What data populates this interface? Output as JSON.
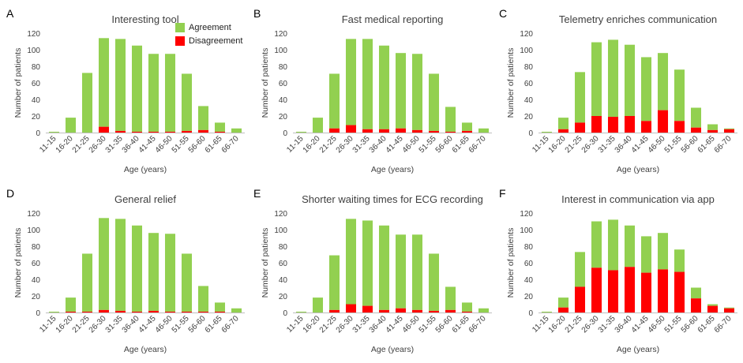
{
  "colors": {
    "agreement": "#92d050",
    "disagreement": "#ff0000",
    "axis": "#595959",
    "text": "#404040"
  },
  "legend": {
    "agreement_label": "Agreement",
    "disagreement_label": "Disagreement"
  },
  "chart_data": [
    {
      "panel": "A",
      "title": "Interesting tool",
      "type": "bar",
      "stacked": true,
      "xlabel": "Age (years)",
      "ylabel": "Number of patients",
      "ylim": [
        0,
        120
      ],
      "yticks": [
        0,
        20,
        40,
        60,
        80,
        100,
        120
      ],
      "categories": [
        "11-15",
        "16-20",
        "21-25",
        "26-30",
        "31-35",
        "36-40",
        "41-45",
        "46-50",
        "51-55",
        "56-60",
        "61-65",
        "66-70"
      ],
      "series": [
        {
          "name": "Disagreement",
          "values": [
            0,
            0,
            0,
            7,
            2,
            1,
            1,
            1,
            2,
            3,
            1,
            0
          ]
        },
        {
          "name": "Agreement",
          "values": [
            1,
            18,
            72,
            107,
            111,
            104,
            94,
            94,
            69,
            29,
            11,
            5
          ]
        }
      ]
    },
    {
      "panel": "B",
      "title": "Fast medical reporting",
      "type": "bar",
      "stacked": true,
      "xlabel": "Age (years)",
      "ylabel": "Number of patients",
      "ylim": [
        0,
        120
      ],
      "yticks": [
        0,
        20,
        40,
        60,
        80,
        100,
        120
      ],
      "categories": [
        "11-15",
        "16-20",
        "21-25",
        "26-30",
        "31-35",
        "36-40",
        "41-45",
        "46-50",
        "51-55",
        "56-60",
        "61-65",
        "66-70"
      ],
      "series": [
        {
          "name": "Disagreement",
          "values": [
            0,
            0,
            5,
            9,
            4,
            4,
            5,
            3,
            2,
            1,
            2,
            0
          ]
        },
        {
          "name": "Agreement",
          "values": [
            1,
            18,
            66,
            104,
            109,
            101,
            91,
            92,
            69,
            30,
            10,
            5
          ]
        }
      ]
    },
    {
      "panel": "C",
      "title": "Telemetry enriches communication",
      "type": "bar",
      "stacked": true,
      "xlabel": "Age (years)",
      "ylabel": "Number of patients",
      "ylim": [
        0,
        120
      ],
      "yticks": [
        0,
        20,
        40,
        60,
        80,
        100,
        120
      ],
      "categories": [
        "11-15",
        "16-20",
        "21-25",
        "26-30",
        "31-35",
        "36-40",
        "41-45",
        "46-50",
        "51-55",
        "56-60",
        "61-65",
        "66-70"
      ],
      "series": [
        {
          "name": "Disagreement",
          "values": [
            0,
            4,
            12,
            20,
            19,
            20,
            14,
            27,
            14,
            6,
            3,
            4
          ]
        },
        {
          "name": "Agreement",
          "values": [
            1,
            14,
            61,
            89,
            93,
            86,
            77,
            69,
            62,
            24,
            7,
            1
          ]
        }
      ]
    },
    {
      "panel": "D",
      "title": "General relief",
      "type": "bar",
      "stacked": true,
      "xlabel": "Age (years)",
      "ylabel": "Number of patients",
      "ylim": [
        0,
        120
      ],
      "yticks": [
        0,
        20,
        40,
        60,
        80,
        100,
        120
      ],
      "categories": [
        "11-15",
        "16-20",
        "21-25",
        "26-30",
        "31-35",
        "36-40",
        "41-45",
        "46-50",
        "51-55",
        "56-60",
        "61-65",
        "66-70"
      ],
      "series": [
        {
          "name": "Disagreement",
          "values": [
            0,
            1,
            1,
            3,
            2,
            1,
            2,
            1,
            1,
            1,
            1,
            0
          ]
        },
        {
          "name": "Agreement",
          "values": [
            1,
            17,
            70,
            111,
            111,
            104,
            94,
            94,
            70,
            31,
            11,
            5
          ]
        }
      ]
    },
    {
      "panel": "E",
      "title": "Shorter waiting times for ECG recording",
      "type": "bar",
      "stacked": true,
      "xlabel": "Age (years)",
      "ylabel": "Number of patients",
      "ylim": [
        0,
        120
      ],
      "yticks": [
        0,
        20,
        40,
        60,
        80,
        100,
        120
      ],
      "categories": [
        "11-15",
        "16-20",
        "21-25",
        "26-30",
        "31-35",
        "36-40",
        "41-45",
        "46-50",
        "51-55",
        "56-60",
        "61-65",
        "66-70"
      ],
      "series": [
        {
          "name": "Disagreement",
          "values": [
            0,
            0,
            3,
            10,
            8,
            3,
            5,
            3,
            2,
            3,
            1,
            0
          ]
        },
        {
          "name": "Agreement",
          "values": [
            1,
            18,
            66,
            103,
            103,
            102,
            89,
            91,
            69,
            28,
            11,
            5
          ]
        }
      ]
    },
    {
      "panel": "F",
      "title": "Interest in communication via app",
      "type": "bar",
      "stacked": true,
      "xlabel": "Age (years)",
      "ylabel": "Number of patients",
      "ylim": [
        0,
        120
      ],
      "yticks": [
        0,
        20,
        40,
        60,
        80,
        100,
        120
      ],
      "categories": [
        "11-15",
        "16-20",
        "21-25",
        "26-30",
        "31-35",
        "36-40",
        "41-45",
        "46-50",
        "51-55",
        "56-60",
        "61-65",
        "66-70"
      ],
      "series": [
        {
          "name": "Disagreement",
          "values": [
            0,
            6,
            31,
            54,
            51,
            55,
            48,
            52,
            49,
            17,
            8,
            5
          ]
        },
        {
          "name": "Agreement",
          "values": [
            1,
            12,
            42,
            56,
            61,
            50,
            44,
            44,
            27,
            13,
            2,
            1
          ]
        }
      ]
    }
  ]
}
